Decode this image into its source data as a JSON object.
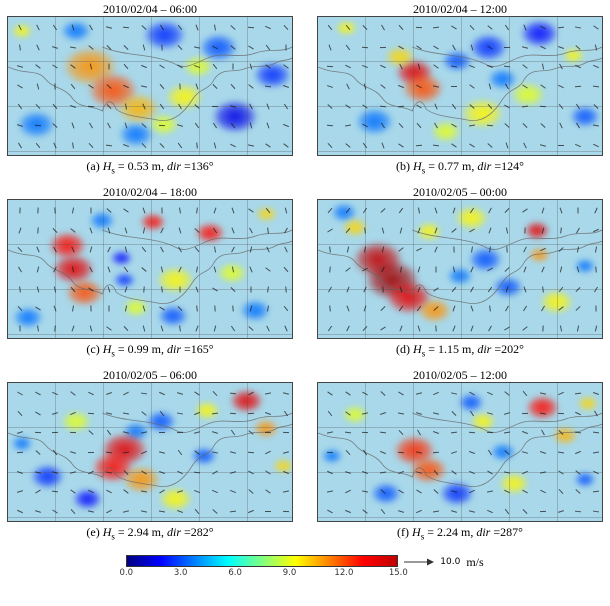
{
  "figure": {
    "caption_symbols": {
      "hs_var": "H",
      "hs_sub": "s",
      "dir_var": "dir"
    },
    "panels": [
      {
        "label": "(a) ",
        "title": "2010/02/04 – 06:00",
        "hs_text": " = 0.53 m, ",
        "dir_text": " =136°"
      },
      {
        "label": "(b) ",
        "title": "2010/02/04 – 12:00",
        "hs_text": " = 0.77 m, ",
        "dir_text": " =124°"
      },
      {
        "label": "(c) ",
        "title": "2010/02/04 – 18:00",
        "hs_text": " = 0.99 m, ",
        "dir_text": " =165°"
      },
      {
        "label": "(d) ",
        "title": "2010/02/05 – 00:00",
        "hs_text": " = 1.15 m, ",
        "dir_text": " =202°"
      },
      {
        "label": "(e) ",
        "title": "2010/02/05 – 06:00",
        "hs_text": " = 2.94 m, ",
        "dir_text": " =282°"
      },
      {
        "label": "(f) ",
        "title": "2010/02/05 – 12:00",
        "hs_text": " = 2.24 m, ",
        "dir_text": " =287°"
      }
    ],
    "colorbar": {
      "ticks": [
        "0.0",
        "3.0",
        "6.0",
        "9.0",
        "12.0",
        "15.0"
      ],
      "unit": "m/s",
      "arrow_value": "10.0",
      "colors": [
        "#00007f",
        "#0000ff",
        "#0080ff",
        "#00ffff",
        "#80ff80",
        "#ffff00",
        "#ff8000",
        "#ff0000",
        "#bf0000"
      ]
    }
  },
  "chart_data": [
    {
      "type": "heatmap",
      "panel": "a",
      "title": "2010/02/04 – 06:00",
      "hs_m": 0.53,
      "dir_deg": 136,
      "unit": "m/s",
      "value_range": [
        0,
        15
      ],
      "colormap": "jet",
      "base_value_m_s": 5,
      "base_color": "#a8d8ea",
      "overlay": "wind-direction quivers",
      "spot_format": "[x_frac, y_frac, radius_frac, value_m_s]",
      "spots": [
        [
          0.55,
          0.13,
          0.1,
          2.5
        ],
        [
          0.74,
          0.22,
          0.09,
          3
        ],
        [
          0.8,
          0.72,
          0.11,
          1.5
        ],
        [
          0.93,
          0.42,
          0.09,
          2.5
        ],
        [
          0.1,
          0.78,
          0.09,
          3.5
        ],
        [
          0.24,
          0.1,
          0.07,
          3.5
        ],
        [
          0.45,
          0.85,
          0.08,
          3.5
        ],
        [
          0.29,
          0.36,
          0.13,
          11
        ],
        [
          0.37,
          0.53,
          0.12,
          12
        ],
        [
          0.46,
          0.66,
          0.1,
          10.5
        ],
        [
          0.62,
          0.58,
          0.09,
          9.5
        ],
        [
          0.67,
          0.36,
          0.07,
          9
        ],
        [
          0.05,
          0.1,
          0.05,
          9.5
        ],
        [
          0.55,
          0.78,
          0.07,
          9
        ]
      ]
    },
    {
      "type": "heatmap",
      "panel": "b",
      "title": "2010/02/04 – 12:00",
      "hs_m": 0.77,
      "dir_deg": 124,
      "unit": "m/s",
      "value_range": [
        0,
        15
      ],
      "colormap": "jet",
      "base_value_m_s": 5,
      "base_color": "#a8d8ea",
      "overlay": "wind-direction quivers",
      "spot_format": "[x_frac, y_frac, radius_frac, value_m_s]",
      "spots": [
        [
          0.6,
          0.22,
          0.09,
          2.5
        ],
        [
          0.78,
          0.12,
          0.09,
          2
        ],
        [
          0.49,
          0.32,
          0.07,
          3
        ],
        [
          0.2,
          0.76,
          0.09,
          3.5
        ],
        [
          0.94,
          0.72,
          0.07,
          3
        ],
        [
          0.65,
          0.45,
          0.07,
          3.5
        ],
        [
          0.34,
          0.4,
          0.09,
          13.5
        ],
        [
          0.37,
          0.52,
          0.1,
          12
        ],
        [
          0.29,
          0.29,
          0.07,
          10
        ],
        [
          0.58,
          0.7,
          0.1,
          9.5
        ],
        [
          0.74,
          0.56,
          0.08,
          9
        ],
        [
          0.9,
          0.28,
          0.05,
          9.5
        ],
        [
          0.1,
          0.08,
          0.05,
          9.5
        ],
        [
          0.45,
          0.83,
          0.07,
          9
        ]
      ]
    },
    {
      "type": "heatmap",
      "panel": "c",
      "title": "2010/02/04 – 18:00",
      "hs_m": 0.99,
      "dir_deg": 165,
      "unit": "m/s",
      "value_range": [
        0,
        15
      ],
      "colormap": "jet",
      "base_value_m_s": 5,
      "base_color": "#a8d8ea",
      "overlay": "wind-direction quivers",
      "spot_format": "[x_frac, y_frac, radius_frac, value_m_s]",
      "spots": [
        [
          0.4,
          0.42,
          0.05,
          2
        ],
        [
          0.41,
          0.58,
          0.05,
          2.5
        ],
        [
          0.58,
          0.84,
          0.07,
          3
        ],
        [
          0.07,
          0.85,
          0.07,
          3.5
        ],
        [
          0.87,
          0.8,
          0.07,
          3.5
        ],
        [
          0.33,
          0.15,
          0.06,
          3.5
        ],
        [
          0.21,
          0.33,
          0.09,
          13
        ],
        [
          0.23,
          0.5,
          0.1,
          13.5
        ],
        [
          0.27,
          0.67,
          0.09,
          12
        ],
        [
          0.51,
          0.16,
          0.06,
          13
        ],
        [
          0.71,
          0.24,
          0.07,
          13
        ],
        [
          0.59,
          0.58,
          0.09,
          9.5
        ],
        [
          0.79,
          0.53,
          0.07,
          9
        ],
        [
          0.91,
          0.1,
          0.05,
          10
        ],
        [
          0.45,
          0.78,
          0.06,
          9
        ]
      ]
    },
    {
      "type": "heatmap",
      "panel": "d",
      "title": "2010/02/05 – 00:00",
      "hs_m": 1.15,
      "dir_deg": 202,
      "unit": "m/s",
      "value_range": [
        0,
        15
      ],
      "colormap": "jet",
      "base_value_m_s": 5,
      "base_color": "#a8d8ea",
      "overlay": "wind-direction quivers",
      "spot_format": "[x_frac, y_frac, radius_frac, value_m_s]",
      "spots": [
        [
          0.59,
          0.43,
          0.08,
          3
        ],
        [
          0.67,
          0.63,
          0.07,
          3
        ],
        [
          0.94,
          0.48,
          0.05,
          3.5
        ],
        [
          0.09,
          0.09,
          0.06,
          3.5
        ],
        [
          0.5,
          0.55,
          0.06,
          3.5
        ],
        [
          0.21,
          0.43,
          0.12,
          14
        ],
        [
          0.26,
          0.58,
          0.13,
          14.5
        ],
        [
          0.32,
          0.71,
          0.11,
          13.5
        ],
        [
          0.41,
          0.8,
          0.08,
          11
        ],
        [
          0.77,
          0.22,
          0.06,
          13.5
        ],
        [
          0.78,
          0.4,
          0.05,
          11
        ],
        [
          0.54,
          0.13,
          0.08,
          9.5
        ],
        [
          0.84,
          0.74,
          0.08,
          9.5
        ],
        [
          0.39,
          0.23,
          0.06,
          9.5
        ],
        [
          0.13,
          0.2,
          0.06,
          10
        ]
      ]
    },
    {
      "type": "heatmap",
      "panel": "e",
      "title": "2010/02/05 – 06:00",
      "hs_m": 2.94,
      "dir_deg": 282,
      "unit": "m/s",
      "value_range": [
        0,
        15
      ],
      "colormap": "jet",
      "base_value_m_s": 5,
      "base_color": "#a8d8ea",
      "overlay": "wind-direction quivers",
      "spot_format": "[x_frac, y_frac, radius_frac, value_m_s]",
      "spots": [
        [
          0.14,
          0.68,
          0.08,
          2.5
        ],
        [
          0.28,
          0.84,
          0.07,
          2
        ],
        [
          0.54,
          0.28,
          0.07,
          3
        ],
        [
          0.69,
          0.53,
          0.06,
          3
        ],
        [
          0.05,
          0.44,
          0.05,
          3.5
        ],
        [
          0.45,
          0.35,
          0.06,
          3.5
        ],
        [
          0.41,
          0.48,
          0.11,
          13.5
        ],
        [
          0.37,
          0.61,
          0.1,
          13
        ],
        [
          0.47,
          0.7,
          0.09,
          11
        ],
        [
          0.84,
          0.13,
          0.08,
          13.5
        ],
        [
          0.91,
          0.33,
          0.06,
          11
        ],
        [
          0.59,
          0.84,
          0.08,
          9.5
        ],
        [
          0.24,
          0.28,
          0.07,
          9
        ],
        [
          0.7,
          0.2,
          0.06,
          9.5
        ],
        [
          0.97,
          0.6,
          0.05,
          10
        ]
      ]
    },
    {
      "type": "heatmap",
      "panel": "f",
      "title": "2010/02/05 – 12:00",
      "hs_m": 2.24,
      "dir_deg": 287,
      "unit": "m/s",
      "value_range": [
        0,
        15
      ],
      "colormap": "jet",
      "base_value_m_s": 5,
      "base_color": "#a8d8ea",
      "overlay": "wind-direction quivers",
      "spot_format": "[x_frac, y_frac, radius_frac, value_m_s]",
      "spots": [
        [
          0.49,
          0.8,
          0.08,
          2.5
        ],
        [
          0.24,
          0.8,
          0.07,
          3
        ],
        [
          0.54,
          0.14,
          0.06,
          3
        ],
        [
          0.94,
          0.7,
          0.05,
          3
        ],
        [
          0.05,
          0.53,
          0.05,
          3.5
        ],
        [
          0.65,
          0.5,
          0.06,
          3.5
        ],
        [
          0.34,
          0.49,
          0.1,
          12.5
        ],
        [
          0.39,
          0.63,
          0.09,
          12
        ],
        [
          0.79,
          0.18,
          0.08,
          13
        ],
        [
          0.87,
          0.38,
          0.06,
          10.5
        ],
        [
          0.58,
          0.28,
          0.06,
          9.5
        ],
        [
          0.13,
          0.23,
          0.06,
          9
        ],
        [
          0.69,
          0.73,
          0.07,
          9.5
        ],
        [
          0.95,
          0.15,
          0.05,
          10
        ]
      ]
    }
  ]
}
